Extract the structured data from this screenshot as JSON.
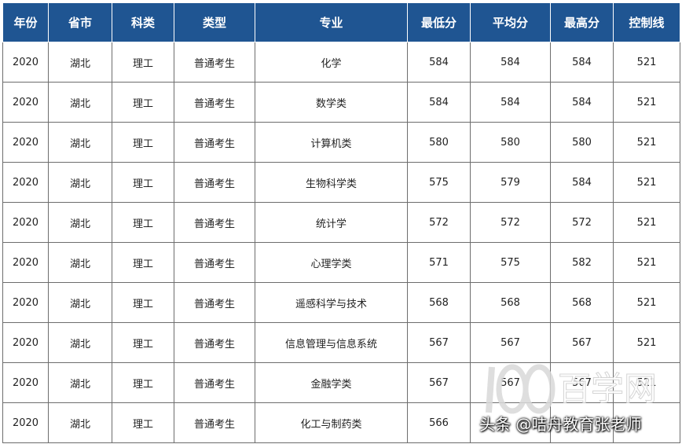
{
  "table": {
    "headers": [
      "年份",
      "省市",
      "科类",
      "类型",
      "专业",
      "最低分",
      "平均分",
      "最高分",
      "控制线"
    ],
    "rows": [
      [
        "2020",
        "湖北",
        "理工",
        "普通考生",
        "化学",
        "584",
        "584",
        "584",
        "521"
      ],
      [
        "2020",
        "湖北",
        "理工",
        "普通考生",
        "数学类",
        "584",
        "584",
        "584",
        "521"
      ],
      [
        "2020",
        "湖北",
        "理工",
        "普通考生",
        "计算机类",
        "580",
        "580",
        "580",
        "521"
      ],
      [
        "2020",
        "湖北",
        "理工",
        "普通考生",
        "生物科学类",
        "575",
        "579",
        "584",
        "521"
      ],
      [
        "2020",
        "湖北",
        "理工",
        "普通考生",
        "统计学",
        "572",
        "572",
        "572",
        "521"
      ],
      [
        "2020",
        "湖北",
        "理工",
        "普通考生",
        "心理学类",
        "571",
        "575",
        "582",
        "521"
      ],
      [
        "2020",
        "湖北",
        "理工",
        "普通考生",
        "遥感科学与技术",
        "568",
        "568",
        "568",
        "521"
      ],
      [
        "2020",
        "湖北",
        "理工",
        "普通考生",
        "信息管理与信息系统",
        "567",
        "567",
        "567",
        "521"
      ],
      [
        "2020",
        "湖北",
        "理工",
        "普通考生",
        "金融学类",
        "567",
        "567",
        "567",
        "521"
      ],
      [
        "2020",
        "湖北",
        "理工",
        "普通考生",
        "化工与制药类",
        "566",
        "",
        "",
        ""
      ]
    ]
  },
  "watermark": {
    "logo_text": "百学网",
    "credit_text": "头条 @咭舟教育张老师"
  },
  "colors": {
    "header_bg": "#1f5592",
    "header_text": "#ffffff",
    "border": "#6d6d6d"
  }
}
